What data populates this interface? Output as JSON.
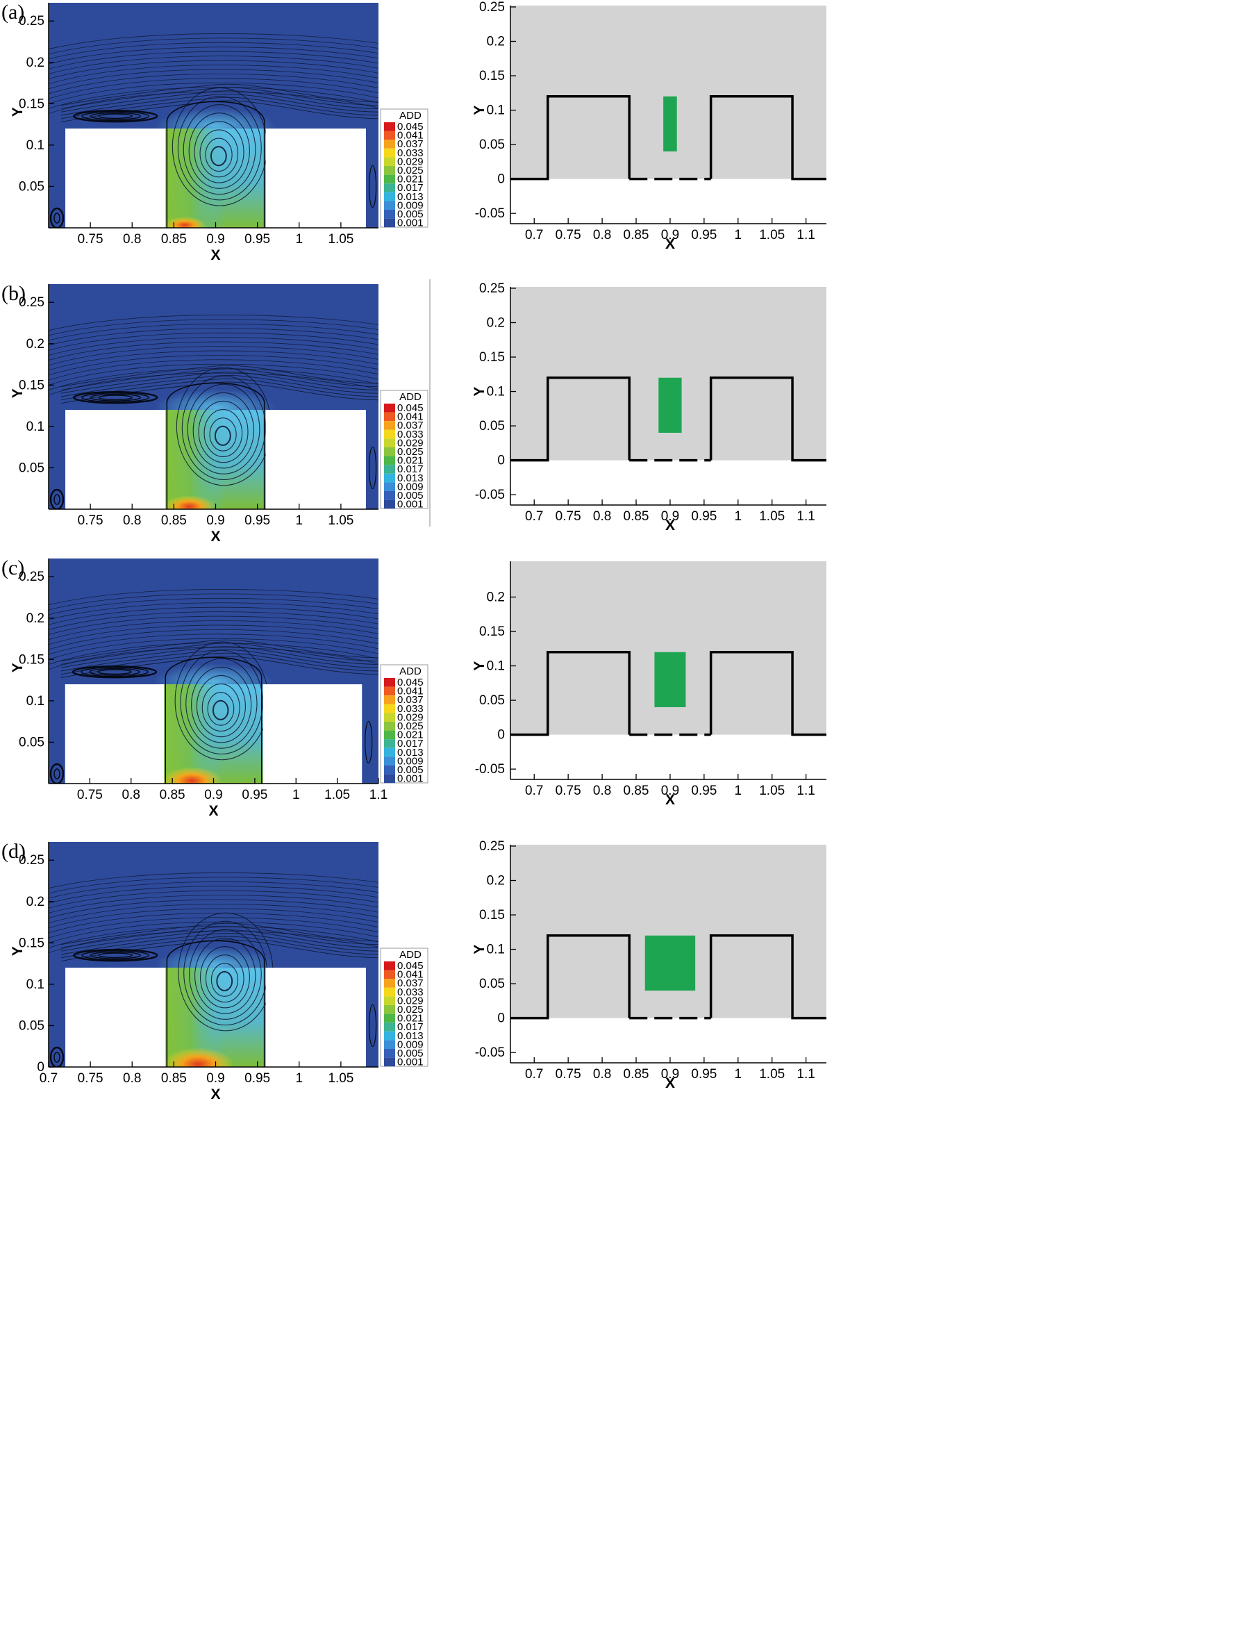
{
  "panels": [
    {
      "label": "(a)",
      "left_chart": {
        "type": "heatmap",
        "xlabel": "X",
        "ylabel": "Y",
        "xlim": [
          0.7,
          1.095
        ],
        "ylim": [
          0,
          0.272
        ],
        "xticks": [
          "0.75",
          "0.8",
          "0.85",
          "0.9",
          "0.95",
          "1",
          "1.05"
        ],
        "yticks": [
          "0.05",
          "0.1",
          "0.15",
          "0.2",
          "0.25"
        ],
        "vortex_center": [
          0.905,
          0.098
        ],
        "legend_title": "ADD",
        "legend_levels": [
          "0.045",
          "0.041",
          "0.037",
          "0.033",
          "0.029",
          "0.025",
          "0.021",
          "0.017",
          "0.013",
          "0.009",
          "0.005",
          "0.001"
        ]
      },
      "right_chart": {
        "type": "diagram",
        "xlabel": "X",
        "ylabel": "Y",
        "xlim": [
          0.665,
          1.13
        ],
        "ylim": [
          -0.065,
          0.252
        ],
        "xticks": [
          "0.7",
          "0.75",
          "0.8",
          "0.85",
          "0.9",
          "0.95",
          "1",
          "1.05",
          "1.1"
        ],
        "yticks": [
          "-0.05",
          "0",
          "0.05",
          "0.1",
          "0.15",
          "0.2",
          "0.25"
        ],
        "green_block": {
          "x": [
            0.89,
            0.91
          ],
          "y": [
            0.04,
            0.12
          ]
        }
      }
    },
    {
      "label": "(b)",
      "left_chart": {
        "type": "heatmap",
        "xlabel": "X",
        "ylabel": "Y",
        "xlim": [
          0.7,
          1.095
        ],
        "ylim": [
          0,
          0.272
        ],
        "xticks": [
          "0.75",
          "0.8",
          "0.85",
          "0.9",
          "0.95",
          "1",
          "1.05"
        ],
        "yticks": [
          "0.05",
          "0.1",
          "0.15",
          "0.2",
          "0.25"
        ],
        "vortex_center": [
          0.91,
          0.1
        ],
        "legend_title": "ADD",
        "legend_levels": [
          "0.045",
          "0.041",
          "0.037",
          "0.033",
          "0.029",
          "0.025",
          "0.021",
          "0.017",
          "0.013",
          "0.009",
          "0.005",
          "0.001"
        ]
      },
      "right_chart": {
        "type": "diagram",
        "xlabel": "X",
        "ylabel": "Y",
        "xlim": [
          0.665,
          1.13
        ],
        "ylim": [
          -0.065,
          0.252
        ],
        "xticks": [
          "0.7",
          "0.75",
          "0.8",
          "0.85",
          "0.9",
          "0.95",
          "1",
          "1.05",
          "1.1"
        ],
        "yticks": [
          "-0.05",
          "0",
          "0.05",
          "0.1",
          "0.15",
          "0.2",
          "0.25"
        ],
        "green_block": {
          "x": [
            0.883,
            0.917
          ],
          "y": [
            0.04,
            0.12
          ]
        }
      }
    },
    {
      "label": "(c)",
      "left_chart": {
        "type": "heatmap",
        "xlabel": "X",
        "ylabel": "Y",
        "xlim": [
          0.7,
          1.1
        ],
        "ylim": [
          0,
          0.272
        ],
        "xticks": [
          "0.75",
          "0.8",
          "0.85",
          "0.9",
          "0.95",
          "1",
          "1.05",
          "1.1"
        ],
        "yticks": [
          "0.05",
          "0.1",
          "0.15",
          "0.2",
          "0.25"
        ],
        "vortex_center": [
          0.91,
          0.1
        ],
        "legend_title": "ADD",
        "legend_levels": [
          "0.045",
          "0.041",
          "0.037",
          "0.033",
          "0.029",
          "0.025",
          "0.021",
          "0.017",
          "0.013",
          "0.009",
          "0.005",
          "0.001"
        ]
      },
      "right_chart": {
        "type": "diagram",
        "xlabel": "X",
        "ylabel": "Y",
        "xlim": [
          0.665,
          1.13
        ],
        "ylim": [
          -0.065,
          0.252
        ],
        "xticks": [
          "0.7",
          "0.75",
          "0.8",
          "0.85",
          "0.9",
          "0.95",
          "1",
          "1.05",
          "1.1"
        ],
        "yticks": [
          "-0.05",
          "0",
          "0.05",
          "0.1",
          "0.15",
          "0.2"
        ],
        "green_block": {
          "x": [
            0.877,
            0.923
          ],
          "y": [
            0.04,
            0.12
          ]
        }
      }
    },
    {
      "label": "(d)",
      "left_chart": {
        "type": "heatmap",
        "xlabel": "X",
        "ylabel": "Y",
        "xlim": [
          0.7,
          1.095
        ],
        "ylim": [
          0,
          0.272
        ],
        "xticks": [
          "0.7",
          "0.75",
          "0.8",
          "0.85",
          "0.9",
          "0.95",
          "1",
          "1.05"
        ],
        "yticks": [
          "0",
          "0.05",
          "0.1",
          "0.15",
          "0.2",
          "0.25"
        ],
        "vortex_center": [
          0.912,
          0.115
        ],
        "legend_title": "ADD",
        "legend_levels": [
          "0.045",
          "0.041",
          "0.037",
          "0.033",
          "0.029",
          "0.025",
          "0.021",
          "0.017",
          "0.013",
          "0.009",
          "0.005",
          "0.001"
        ]
      },
      "right_chart": {
        "type": "diagram",
        "xlabel": "X",
        "ylabel": "Y",
        "xlim": [
          0.665,
          1.13
        ],
        "ylim": [
          -0.065,
          0.252
        ],
        "xticks": [
          "0.7",
          "0.75",
          "0.8",
          "0.85",
          "0.9",
          "0.95",
          "1",
          "1.05",
          "1.1"
        ],
        "yticks": [
          "-0.05",
          "0",
          "0.05",
          "0.1",
          "0.15",
          "0.2",
          "0.25"
        ],
        "green_block": {
          "x": [
            0.863,
            0.937
          ],
          "y": [
            0.04,
            0.12
          ]
        }
      }
    }
  ],
  "colors": {
    "background_flow": "#2e4b9b",
    "cavity_light": "#5cc0e8",
    "cavity_green": "#7cbd3a",
    "hotspot": "#e03a1e",
    "diagram_fill": "#d3d3d3",
    "green_block": "#1ea552",
    "wall": "#000000"
  },
  "legend_colors": [
    "#d7191c",
    "#ef5a22",
    "#f6a21c",
    "#f5d71c",
    "#c7d72e",
    "#8cc63f",
    "#4db848",
    "#3cb392",
    "#33b3e0",
    "#3a8fd6",
    "#3460b8",
    "#2e4b9b"
  ]
}
